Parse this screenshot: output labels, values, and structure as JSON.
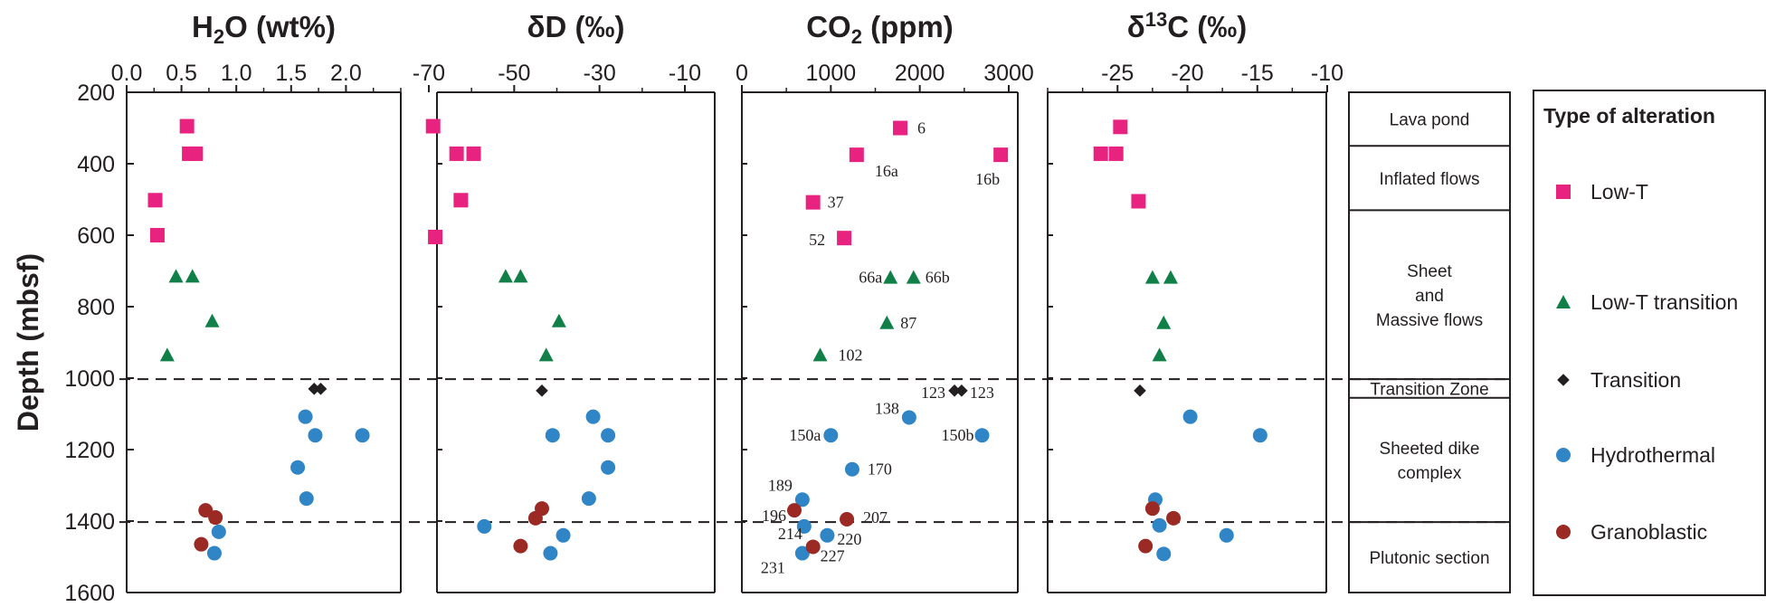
{
  "colors": {
    "Low-T": "#e8237f",
    "Low-T transition": "#118048",
    "Transition": "#231f20",
    "Hydrothermal": "#2f85c5",
    "Granoblastic": "#9b2a24"
  },
  "y_axis": {
    "label": "Depth (mbsf)",
    "range": [
      200,
      1600
    ],
    "ticks": [
      200,
      400,
      600,
      800,
      1000,
      1200,
      1400,
      1600
    ],
    "inverted": true
  },
  "dashed_lines": [
    1003,
    1403
  ],
  "chart_data": [
    {
      "type": "scatter",
      "title": {
        "main": "H",
        "sub": "2",
        "rest": "O (wt%)"
      },
      "xlim": [
        0.0,
        2.5
      ],
      "xticks": [
        {
          "v": 0.0,
          "label": "0.0"
        },
        {
          "v": 0.5,
          "label": "0.5"
        },
        {
          "v": 1.0,
          "label": "1.0"
        },
        {
          "v": 1.5,
          "label": "1.5"
        },
        {
          "v": 2.0,
          "label": "2.0"
        }
      ],
      "series": [
        {
          "name": "Low-T",
          "shape": "square",
          "points": [
            [
              0.55,
              295
            ],
            [
              0.57,
              372
            ],
            [
              0.63,
              372
            ],
            [
              0.26,
              502
            ],
            [
              0.28,
              600
            ]
          ]
        },
        {
          "name": "Low-T transition",
          "shape": "triangle",
          "points": [
            [
              0.45,
              715
            ],
            [
              0.6,
              715
            ],
            [
              0.78,
              840
            ],
            [
              0.37,
              935
            ]
          ]
        },
        {
          "name": "Transition",
          "shape": "diamond",
          "points": [
            [
              1.71,
              1030
            ],
            [
              1.77,
              1030
            ]
          ]
        },
        {
          "name": "Hydrothermal",
          "shape": "circle",
          "points": [
            [
              1.63,
              1108
            ],
            [
              1.72,
              1160
            ],
            [
              2.15,
              1160
            ],
            [
              1.56,
              1250
            ],
            [
              1.64,
              1337
            ],
            [
              0.84,
              1430
            ],
            [
              0.8,
              1490
            ]
          ]
        },
        {
          "name": "Granoblastic",
          "shape": "circle",
          "points": [
            [
              0.72,
              1370
            ],
            [
              0.81,
              1390
            ],
            [
              0.68,
              1465
            ]
          ]
        }
      ]
    },
    {
      "type": "scatter",
      "title": {
        "main": "δD (‰)"
      },
      "xlim": [
        -70,
        -10
      ],
      "xticks": [
        {
          "v": -70,
          "label": "-70"
        },
        {
          "v": -50,
          "label": "-50"
        },
        {
          "v": -30,
          "label": "-30"
        },
        {
          "v": -10,
          "label": "-10"
        }
      ],
      "series": [
        {
          "name": "Low-T",
          "shape": "square",
          "points": [
            [
              -69,
              295
            ],
            [
              -63.5,
              372
            ],
            [
              -59.5,
              372
            ],
            [
              -62.5,
              502
            ],
            [
              -68.5,
              605
            ]
          ]
        },
        {
          "name": "Low-T transition",
          "shape": "triangle",
          "points": [
            [
              -52,
              715
            ],
            [
              -48.5,
              715
            ],
            [
              -39.5,
              840
            ],
            [
              -42.5,
              935
            ]
          ]
        },
        {
          "name": "Transition",
          "shape": "diamond",
          "points": [
            [
              -43.5,
              1035
            ]
          ]
        },
        {
          "name": "Hydrothermal",
          "shape": "circle",
          "points": [
            [
              -31.5,
              1108
            ],
            [
              -41,
              1160
            ],
            [
              -28,
              1160
            ],
            [
              -28,
              1250
            ],
            [
              -32.5,
              1337
            ],
            [
              -38.5,
              1440
            ],
            [
              -57,
              1415
            ],
            [
              -41.5,
              1490
            ]
          ]
        },
        {
          "name": "Granoblastic",
          "shape": "circle",
          "points": [
            [
              -43.5,
              1365
            ],
            [
              -45,
              1392
            ],
            [
              -48.5,
              1470
            ]
          ]
        }
      ]
    },
    {
      "type": "scatter",
      "title": {
        "main": "CO",
        "sub": "2",
        "rest": " (ppm)"
      },
      "xlim": [
        0,
        3000
      ],
      "xticks": [
        {
          "v": 0,
          "label": "0"
        },
        {
          "v": 1000,
          "label": "1000"
        },
        {
          "v": 2000,
          "label": "2000"
        },
        {
          "v": 3000,
          "label": "3000"
        }
      ],
      "series": [
        {
          "name": "Low-T",
          "shape": "square",
          "points": [
            [
              1780,
              300,
              "6"
            ],
            [
              1290,
              375,
              "16a"
            ],
            [
              2910,
              375,
              "16b"
            ],
            [
              800,
              508,
              "37"
            ],
            [
              1150,
              608,
              "52"
            ]
          ]
        },
        {
          "name": "Low-T transition",
          "shape": "triangle",
          "points": [
            [
              1670,
              718,
              "66a"
            ],
            [
              1930,
              718,
              "66b"
            ],
            [
              1630,
              845,
              "87"
            ],
            [
              880,
              935,
              "102"
            ]
          ]
        },
        {
          "name": "Transition",
          "shape": "diamond",
          "points": [
            [
              2390,
              1035,
              "123"
            ],
            [
              2470,
              1035,
              "123"
            ]
          ]
        },
        {
          "name": "Hydrothermal",
          "shape": "circle",
          "points": [
            [
              1880,
              1110,
              "138"
            ],
            [
              1000,
              1160,
              "150a"
            ],
            [
              2700,
              1160,
              "150b"
            ],
            [
              1240,
              1255,
              "170"
            ],
            [
              680,
              1340,
              "189"
            ],
            [
              700,
              1415,
              "214"
            ],
            [
              960,
              1440,
              "220"
            ],
            [
              680,
              1490,
              "231"
            ]
          ]
        },
        {
          "name": "Granoblastic",
          "shape": "circle",
          "points": [
            [
              590,
              1370,
              "196"
            ],
            [
              1180,
              1395,
              "207"
            ],
            [
              800,
              1472,
              "227"
            ]
          ]
        }
      ]
    },
    {
      "type": "scatter",
      "title": {
        "main": "δ",
        "sup": "13",
        "rest": "C (‰)"
      },
      "xlim": [
        -30,
        -10
      ],
      "xticks": [
        {
          "v": -25,
          "label": "-25"
        },
        {
          "v": -20,
          "label": "-20"
        },
        {
          "v": -15,
          "label": "-15"
        },
        {
          "v": -10,
          "label": "-10"
        }
      ],
      "series": [
        {
          "name": "Low-T",
          "shape": "square",
          "points": [
            [
              -24.8,
              297
            ],
            [
              -26.2,
              372
            ],
            [
              -25.1,
              372
            ],
            [
              -23.5,
              505
            ]
          ]
        },
        {
          "name": "Low-T transition",
          "shape": "triangle",
          "points": [
            [
              -22.5,
              718
            ],
            [
              -21.2,
              718
            ],
            [
              -21.7,
              845
            ],
            [
              -22,
              935
            ]
          ]
        },
        {
          "name": "Transition",
          "shape": "diamond",
          "points": [
            [
              -23.4,
              1035
            ]
          ]
        },
        {
          "name": "Hydrothermal",
          "shape": "circle",
          "points": [
            [
              -19.8,
              1108
            ],
            [
              -14.8,
              1160
            ],
            [
              -22.3,
              1340
            ],
            [
              -22,
              1412
            ],
            [
              -17.2,
              1440
            ],
            [
              -21.7,
              1492
            ]
          ]
        },
        {
          "name": "Granoblastic",
          "shape": "circle",
          "points": [
            [
              -22.5,
              1365
            ],
            [
              -21,
              1392
            ],
            [
              -23,
              1470
            ]
          ]
        }
      ]
    }
  ],
  "zones": [
    {
      "label": "Lava pond",
      "range": [
        200,
        350
      ]
    },
    {
      "label": "Inflated flows",
      "range": [
        350,
        530
      ]
    },
    {
      "label": "Sheet\nand\nMassive flows",
      "range": [
        530,
        1003
      ]
    },
    {
      "label": "Transition Zone",
      "range": [
        1003,
        1055
      ]
    },
    {
      "label": "Sheeted dike\ncomplex",
      "range": [
        1055,
        1403
      ]
    },
    {
      "label": "Plutonic section",
      "range": [
        1403,
        1600
      ]
    }
  ],
  "legend": {
    "title": "Type of alteration",
    "items": [
      {
        "label": "Low-T",
        "shape": "square"
      },
      {
        "label": "Low-T transition",
        "shape": "triangle"
      },
      {
        "label": "Transition",
        "shape": "diamond"
      },
      {
        "label": "Hydrothermal",
        "shape": "circle"
      },
      {
        "label": "Granoblastic",
        "shape": "circle"
      }
    ]
  }
}
